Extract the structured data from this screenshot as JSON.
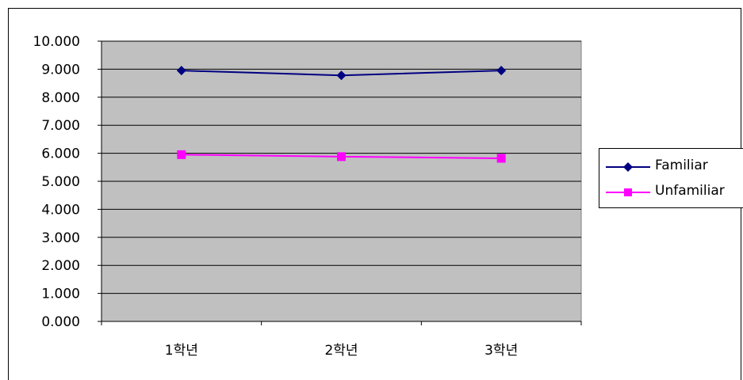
{
  "chart_data": {
    "type": "line",
    "categories": [
      "1학년",
      "2학년",
      "3학년"
    ],
    "series": [
      {
        "name": "Familiar",
        "values": [
          8.95,
          8.78,
          8.95
        ],
        "color": "#000080",
        "marker": "diamond"
      },
      {
        "name": "Unfamiliar",
        "values": [
          5.95,
          5.88,
          5.82
        ],
        "color": "#FF00FF",
        "marker": "square"
      }
    ],
    "yticks": [
      "0.000",
      "1.000",
      "2.000",
      "3.000",
      "4.000",
      "5.000",
      "6.000",
      "7.000",
      "8.000",
      "9.000",
      "10.000"
    ],
    "ylim": [
      0,
      10
    ],
    "grid": true,
    "plot_background": "#C0C0C0",
    "legend_position": "right"
  }
}
